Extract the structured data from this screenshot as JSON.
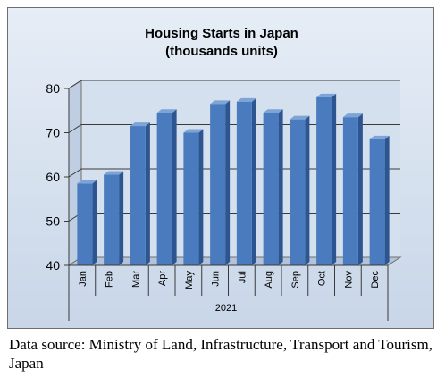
{
  "chart_data": {
    "type": "bar",
    "title": "Housing Starts in Japan",
    "subtitle": "(thousands units)",
    "categories": [
      "Jan",
      "Feb",
      "Mar",
      "Apr",
      "May",
      "Jun",
      "Jul",
      "Aug",
      "Sep",
      "Oct",
      "Nov",
      "Dec"
    ],
    "values": [
      58.5,
      60.5,
      71.5,
      74.5,
      70,
      76.5,
      77,
      74.5,
      73,
      78,
      73.5,
      68.5
    ],
    "category_group_label": "2021",
    "yticks": [
      40,
      50,
      60,
      70,
      80
    ],
    "ylim": [
      40,
      80
    ],
    "grid": true,
    "style": "3d-column",
    "bar_color": "#4a7bbf"
  },
  "source_note": "Data source: Ministry of Land, Infrastructure, Transport and Tourism, Japan"
}
